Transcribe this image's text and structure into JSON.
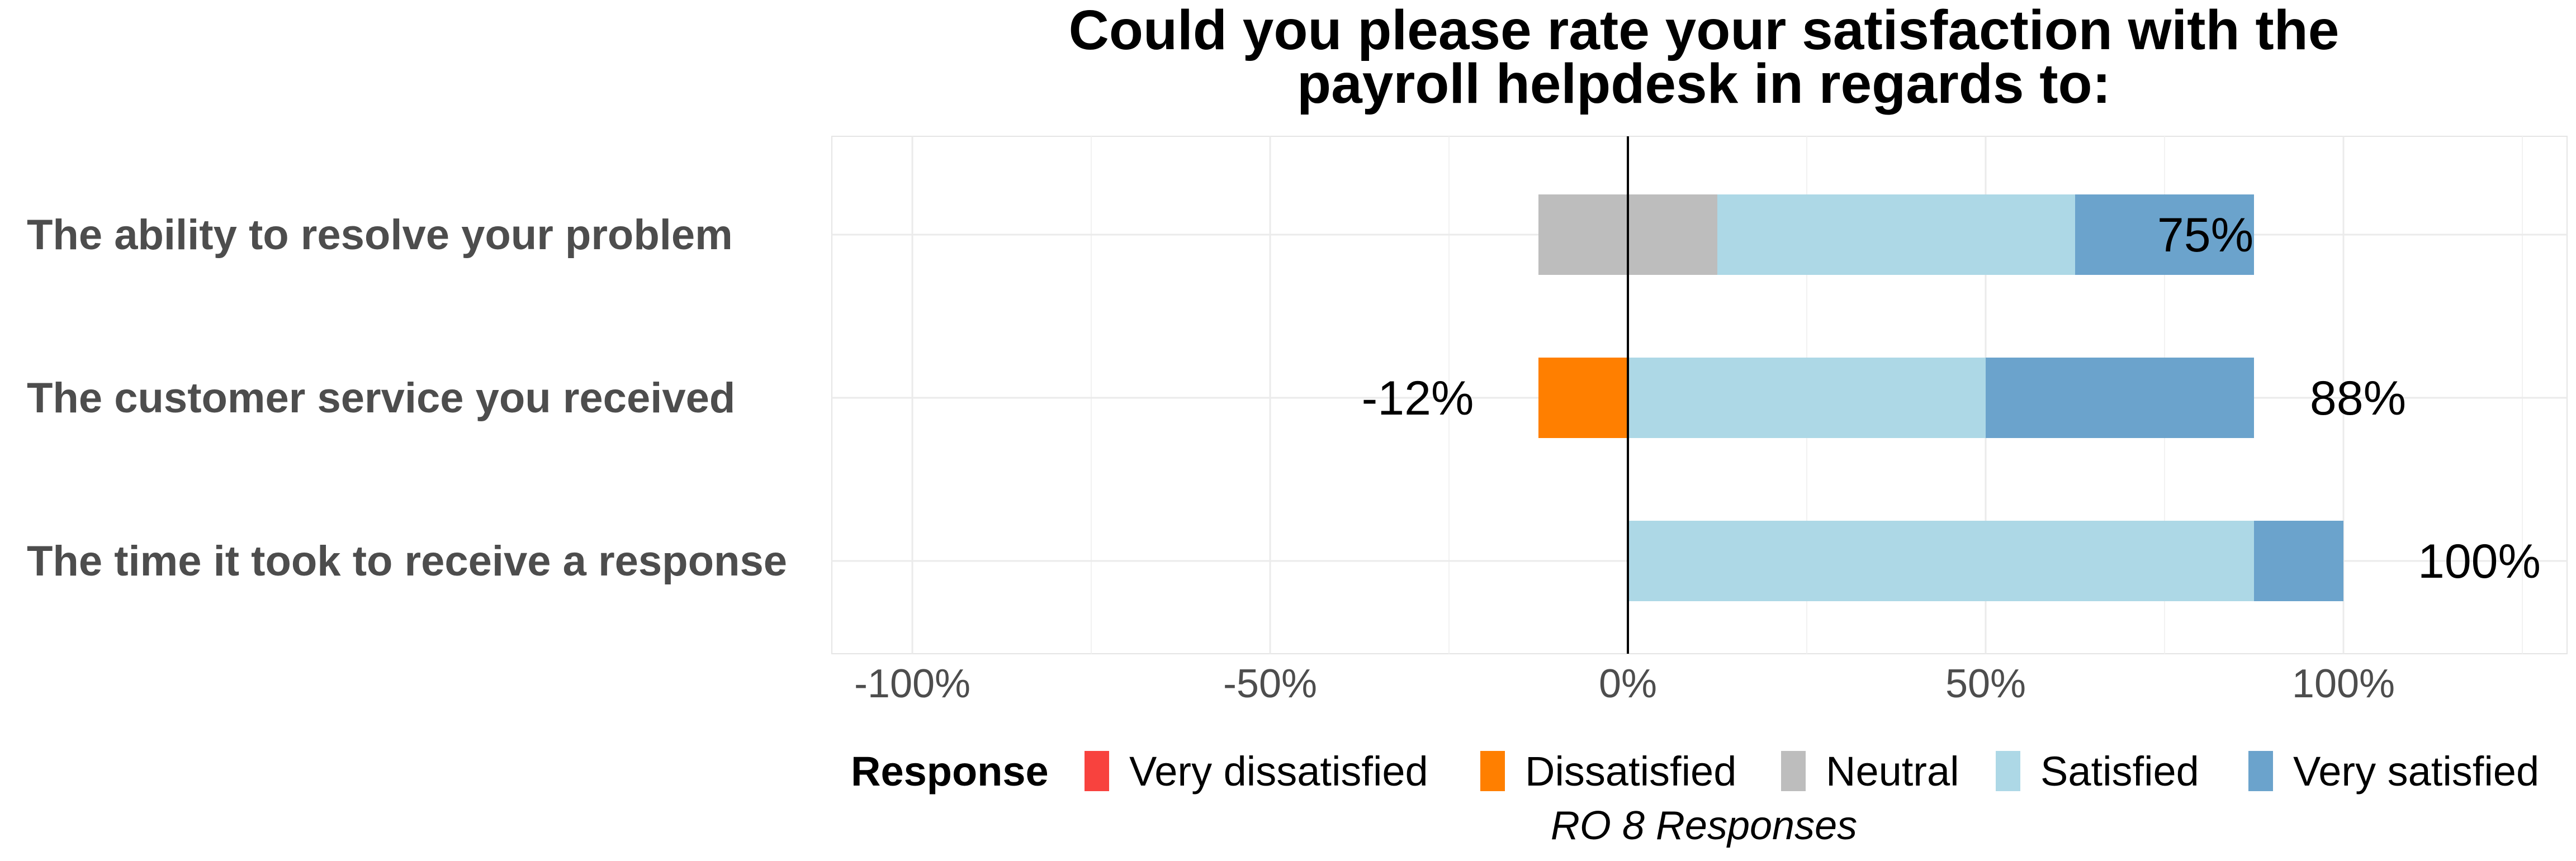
{
  "chart_data": {
    "type": "bar",
    "orientation": "horizontal",
    "stacked": true,
    "diverging": true,
    "title": "Could you please rate your satisfaction with the payroll helpdesk in regards to:",
    "title_lines": [
      "Could you please rate your satisfaction with the",
      "payroll helpdesk in regards to:"
    ],
    "caption": "RO 8 Responses",
    "categories": [
      "The ability to resolve your problem",
      "The customer service you received",
      "The time it took to receive a response"
    ],
    "series": [
      {
        "name": "Very dissatisfied",
        "color": "#f8423e",
        "values": [
          0,
          0,
          0
        ]
      },
      {
        "name": "Dissatisfied",
        "color": "#ff7f00",
        "values": [
          0,
          12.5,
          0
        ]
      },
      {
        "name": "Neutral",
        "color": "#bdbdbd",
        "values": [
          25,
          0,
          0
        ]
      },
      {
        "name": "Satisfied",
        "color": "#add8e6",
        "values": [
          50,
          50,
          87.5
        ]
      },
      {
        "name": "Very satisfied",
        "color": "#6ba3cc",
        "values": [
          25,
          37.5,
          12.5
        ]
      }
    ],
    "data_labels": [
      {
        "category": 0,
        "negative": "",
        "positive": "75%"
      },
      {
        "category": 1,
        "negative": "-12%",
        "positive": "88%"
      },
      {
        "category": 2,
        "negative": "",
        "positive": "100%"
      }
    ],
    "x_ticks": [
      -100,
      -50,
      0,
      50,
      100
    ],
    "x_tick_labels": [
      "-100%",
      "-50%",
      "0%",
      "50%",
      "100%"
    ],
    "xlim": [
      -112,
      125
    ],
    "legend": {
      "title": "Response",
      "position": "bottom"
    },
    "grid": true
  }
}
